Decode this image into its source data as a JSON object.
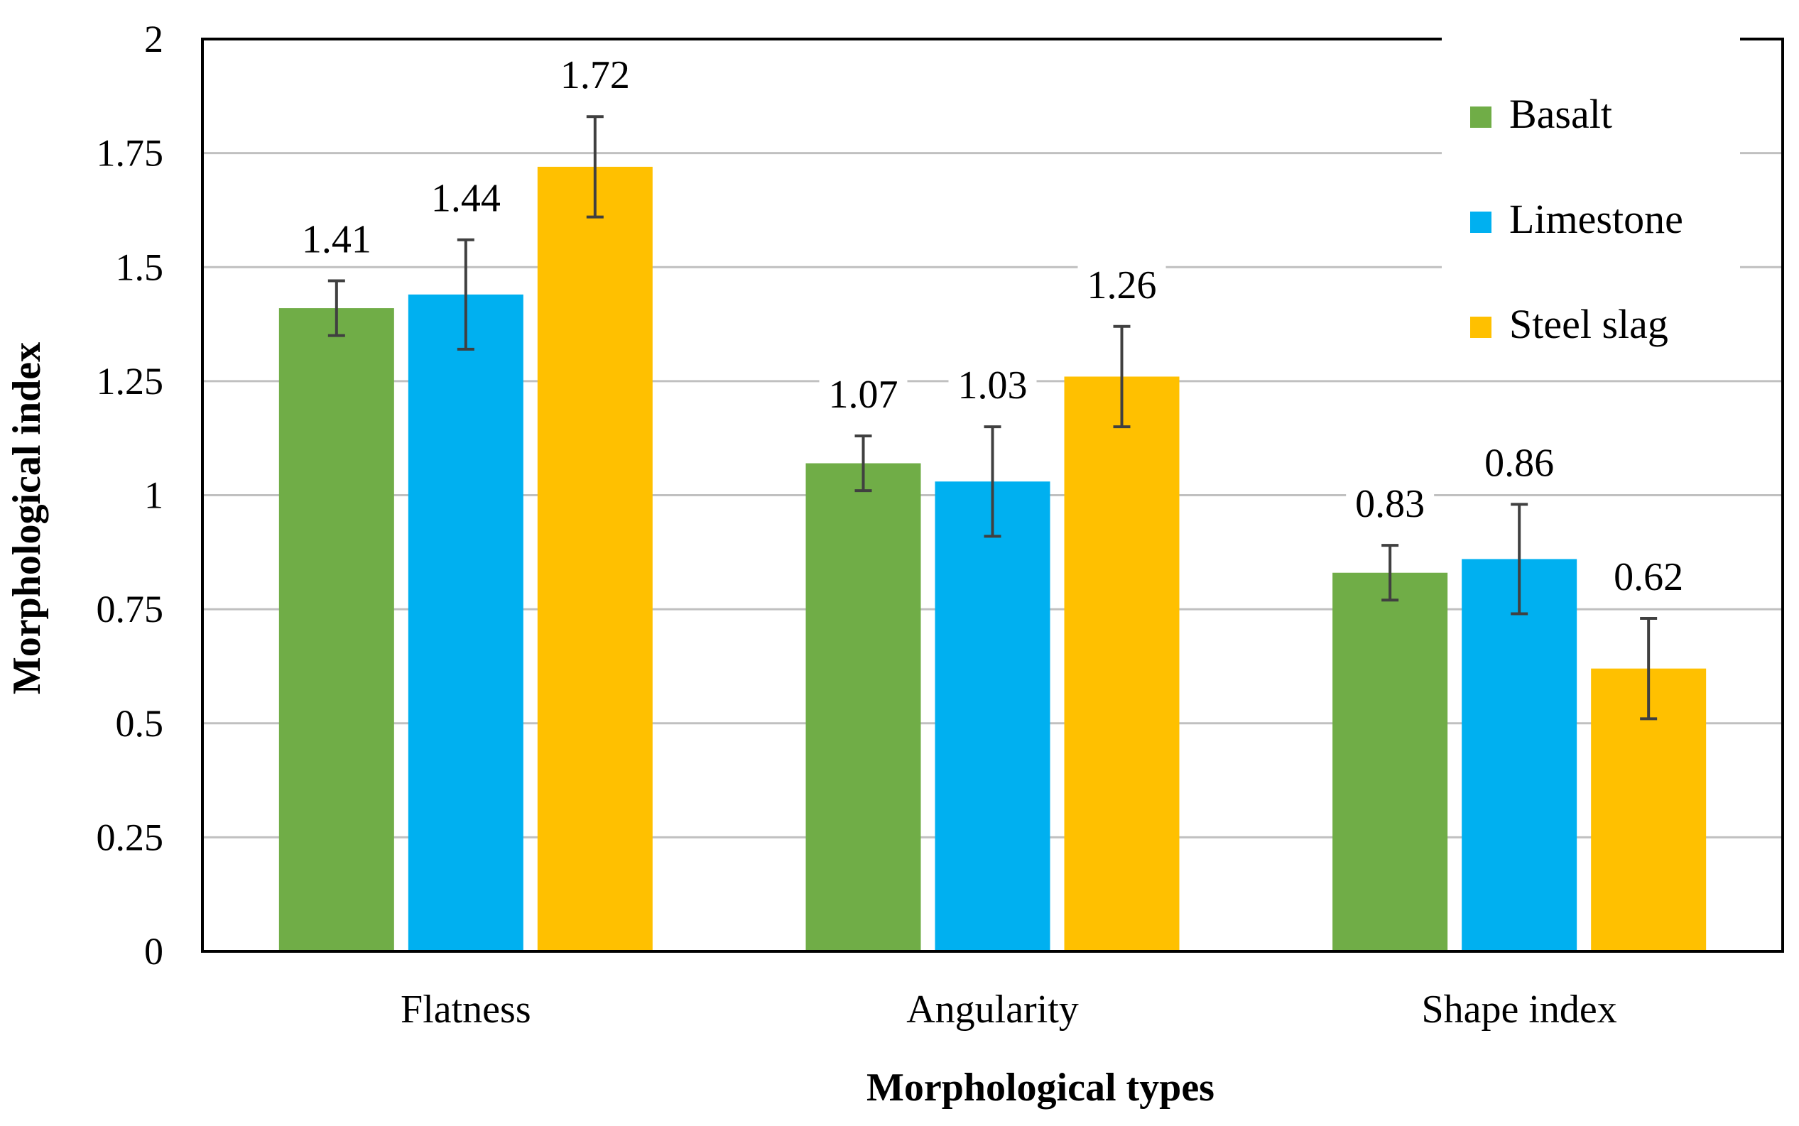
{
  "chart_data": {
    "type": "bar",
    "title": "",
    "xlabel": "Morphological types",
    "ylabel": "Morphological index",
    "ylim": [
      0,
      2
    ],
    "yticks": [
      0,
      0.25,
      0.5,
      0.75,
      1,
      1.25,
      1.5,
      1.75,
      2
    ],
    "ytick_labels": [
      "0",
      "0.25",
      "0.5",
      "0.75",
      "1",
      "1.25",
      "1.5",
      "1.75",
      "2"
    ],
    "grid": true,
    "legend_position": "top-right",
    "categories": [
      "Flatness",
      "Angularity",
      "Shape index"
    ],
    "series": [
      {
        "name": "Basalt",
        "color": "#70AD47",
        "values": [
          1.41,
          1.07,
          0.83
        ],
        "labels": [
          "1.41",
          "1.07",
          "0.83"
        ],
        "errors": [
          0.06,
          0.06,
          0.06
        ]
      },
      {
        "name": "Limestone",
        "color": "#00B0F0",
        "values": [
          1.44,
          1.03,
          0.86
        ],
        "labels": [
          "1.44",
          "1.03",
          "0.86"
        ],
        "errors": [
          0.12,
          0.12,
          0.12
        ]
      },
      {
        "name": "Steel slag",
        "color": "#FFC000",
        "values": [
          1.72,
          1.26,
          0.62
        ],
        "labels": [
          "1.72",
          "1.26",
          "0.62"
        ],
        "errors": [
          0.11,
          0.11,
          0.11
        ]
      }
    ],
    "colors": {
      "axis": "#000000",
      "grid": "#C0C0C0",
      "error_bar": "#404040",
      "text": "#000000"
    }
  }
}
